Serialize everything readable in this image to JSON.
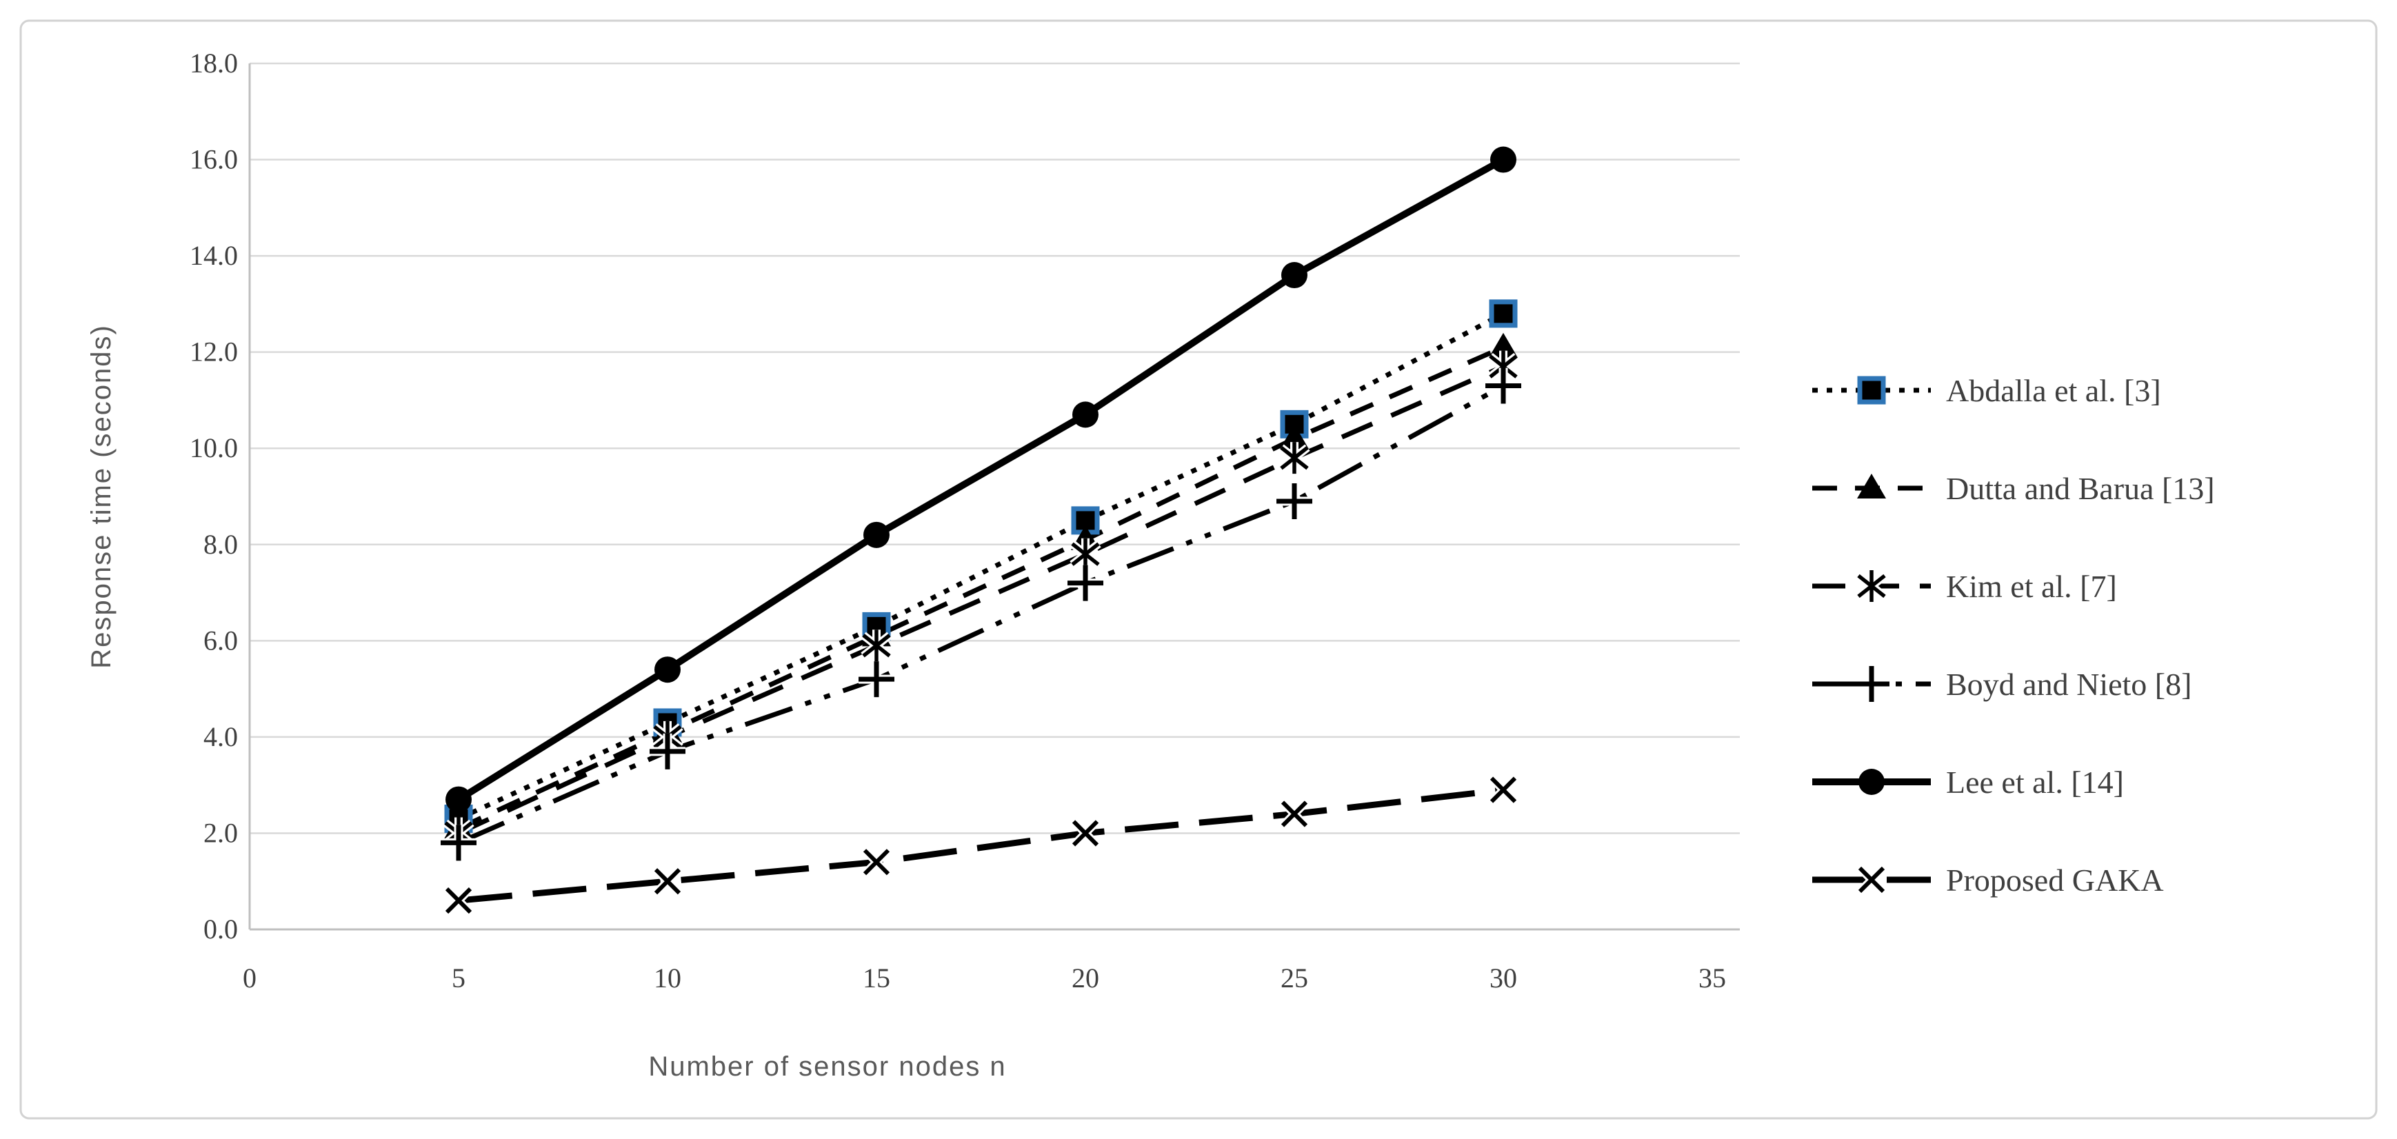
{
  "figure": {
    "background": "#ffffff",
    "border_color": "#d2d2d2"
  },
  "chart_data": {
    "type": "line",
    "title": "",
    "xlabel": "Number of sensor nodes n",
    "ylabel": "Response time (seconds)",
    "x": [
      5,
      10,
      15,
      20,
      25,
      30
    ],
    "xlim": [
      0,
      35
    ],
    "ylim": [
      0.0,
      18.0
    ],
    "x_ticks": [
      "0",
      "5",
      "10",
      "15",
      "20",
      "25",
      "30",
      "35"
    ],
    "y_ticks": [
      "0.0",
      "2.0",
      "4.0",
      "6.0",
      "8.0",
      "10.0",
      "12.0",
      "14.0",
      "16.0",
      "18.0"
    ],
    "grid": "horizontal",
    "legend_position": "right",
    "colors": {
      "series_color": "#000000",
      "square_border": "#2e75b6",
      "gridline": "#d9d9d9",
      "axis_line": "#bfbfbf",
      "tick_text": "#3f3f3f",
      "axis_title_text": "#595959"
    },
    "series": [
      {
        "name": "Abdalla et al. [3]",
        "marker": "square",
        "line": "dotted",
        "values": [
          2.3,
          4.3,
          6.3,
          8.5,
          10.5,
          12.8
        ]
      },
      {
        "name": "Dutta and Barua [13]",
        "marker": "triangle",
        "line": "dashed",
        "values": [
          2.1,
          4.1,
          6.1,
          8.1,
          10.2,
          12.1
        ]
      },
      {
        "name": "Kim et al. [7]",
        "marker": "asterisk",
        "line": "dashed-long",
        "values": [
          2.0,
          4.0,
          5.9,
          7.8,
          9.8,
          11.7
        ]
      },
      {
        "name": "Boyd and Nieto [8]",
        "marker": "plus",
        "line": "dash-dot-dot",
        "values": [
          1.8,
          3.7,
          5.2,
          7.2,
          8.9,
          11.3
        ]
      },
      {
        "name": "Lee et al. [14]",
        "marker": "circle",
        "line": "solid",
        "values": [
          2.7,
          5.4,
          8.2,
          10.7,
          13.6,
          16.0
        ]
      },
      {
        "name": "Proposed GAKA",
        "marker": "x",
        "line": "dashed-xl",
        "values": [
          0.6,
          1.0,
          1.4,
          2.0,
          2.4,
          2.9
        ]
      }
    ]
  }
}
